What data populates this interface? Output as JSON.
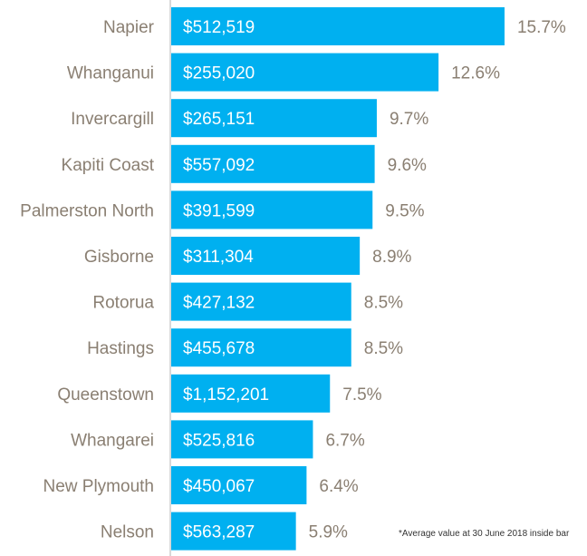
{
  "chart_data": {
    "type": "bar",
    "orientation": "horizontal",
    "categories": [
      "Napier",
      "Whanganui",
      "Invercargill",
      "Kapiti Coast",
      "Palmerston North",
      "Gisborne",
      "Rotorua",
      "Hastings",
      "Queenstown",
      "Whangarei",
      "New Plymouth",
      "Nelson"
    ],
    "values": [
      15.7,
      12.6,
      9.7,
      9.6,
      9.5,
      8.9,
      8.5,
      8.5,
      7.5,
      6.7,
      6.4,
      5.9
    ],
    "value_labels": [
      "15.7%",
      "12.6%",
      "9.7%",
      "9.6%",
      "9.5%",
      "8.9%",
      "8.5%",
      "8.5%",
      "7.5%",
      "6.7%",
      "6.4%",
      "5.9%"
    ],
    "inside_bar_labels": [
      "$512,519",
      "$255,020",
      "$265,151",
      "$557,092",
      "$391,599",
      "$311,304",
      "$427,132",
      "$455,678",
      "$1,152,201",
      "$525,816",
      "$450,067",
      "$563,287"
    ],
    "xlim": [
      0,
      16
    ],
    "grid": false,
    "bar_color": "#00b0f0",
    "label_color": "#8a7f72",
    "axis_color": "#d9d9d9",
    "title": "",
    "xlabel": "",
    "ylabel": ""
  },
  "footnote": "*Average value at 30 June 2018 inside bar"
}
